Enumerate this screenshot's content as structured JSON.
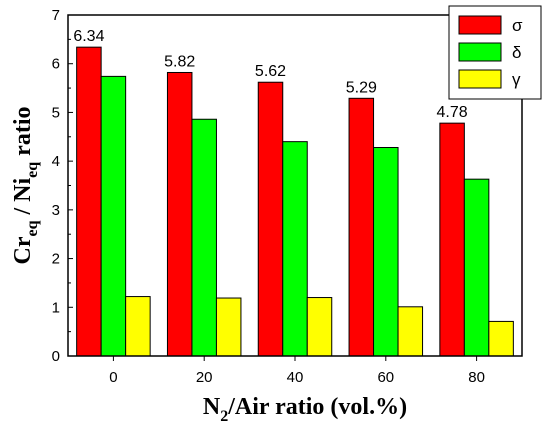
{
  "chart_data": {
    "type": "bar",
    "categories": [
      "0",
      "20",
      "40",
      "60",
      "80"
    ],
    "series": [
      {
        "name": "σ",
        "values": [
          6.34,
          5.82,
          5.62,
          5.29,
          4.78
        ],
        "color": "#ff0000"
      },
      {
        "name": "δ",
        "values": [
          5.74,
          4.86,
          4.4,
          4.28,
          3.63
        ],
        "color": "#00ff00"
      },
      {
        "name": "γ",
        "values": [
          1.22,
          1.19,
          1.2,
          1.01,
          0.71
        ],
        "color": "#ffff00"
      }
    ],
    "data_labels": [
      "6.34",
      "5.82",
      "5.62",
      "5.29",
      "4.78"
    ],
    "ylim": [
      0,
      7
    ],
    "yticks": [
      "0",
      "1",
      "2",
      "3",
      "4",
      "5",
      "6",
      "7"
    ],
    "xlabel": {
      "base": "N",
      "sub": "2",
      "rest": "/Air ratio (vol.%)"
    },
    "ylabel": {
      "p1": "Cr",
      "s1": "eq",
      "p2": " / Ni",
      "s2": "eq",
      "p3": " ratio"
    },
    "legend_position": "top-right",
    "grid": false
  }
}
